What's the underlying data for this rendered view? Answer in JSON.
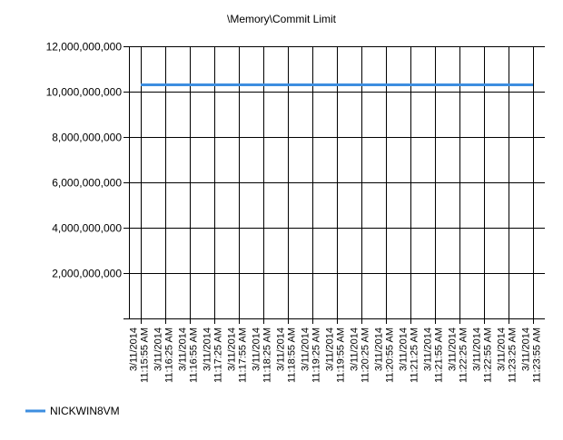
{
  "chart_data": {
    "type": "line",
    "title": "\\Memory\\Commit Limit",
    "xlabel": "",
    "ylabel": "",
    "ylim": [
      0,
      12000000000
    ],
    "yticks": [
      {
        "value": 2000000000,
        "label": "2,000,000,000"
      },
      {
        "value": 4000000000,
        "label": "4,000,000,000"
      },
      {
        "value": 6000000000,
        "label": "6,000,000,000"
      },
      {
        "value": 8000000000,
        "label": "8,000,000,000"
      },
      {
        "value": 10000000000,
        "label": "10,000,000,000"
      },
      {
        "value": 12000000000,
        "label": "12,000,000,000"
      }
    ],
    "grid": true,
    "legend": "bottom-left",
    "categories": [
      {
        "date": "3/11/2014",
        "time": "11:15:55 AM"
      },
      {
        "date": "3/11/2014",
        "time": "11:16:25 AM"
      },
      {
        "date": "3/11/2014",
        "time": "11:16:55 AM"
      },
      {
        "date": "3/11/2014",
        "time": "11:17:25 AM"
      },
      {
        "date": "3/11/2014",
        "time": "11:17:55 AM"
      },
      {
        "date": "3/11/2014",
        "time": "11:18:25 AM"
      },
      {
        "date": "3/11/2014",
        "time": "11:18:55 AM"
      },
      {
        "date": "3/11/2014",
        "time": "11:19:25 AM"
      },
      {
        "date": "3/11/2014",
        "time": "11:19:55 AM"
      },
      {
        "date": "3/11/2014",
        "time": "11:20:25 AM"
      },
      {
        "date": "3/11/2014",
        "time": "11:20:55 AM"
      },
      {
        "date": "3/11/2014",
        "time": "11:21:25 AM"
      },
      {
        "date": "3/11/2014",
        "time": "11:21:55 AM"
      },
      {
        "date": "3/11/2014",
        "time": "11:22:25 AM"
      },
      {
        "date": "3/11/2014",
        "time": "11:22:55 AM"
      },
      {
        "date": "3/11/2014",
        "time": "11:23:25 AM"
      },
      {
        "date": "3/11/2014",
        "time": "11:23:55 AM"
      }
    ],
    "series": [
      {
        "name": "NICKWIN8VM",
        "color": "#3d8ee0",
        "values": [
          10300000000,
          10300000000,
          10300000000,
          10300000000,
          10300000000,
          10300000000,
          10300000000,
          10300000000,
          10300000000,
          10300000000,
          10300000000,
          10300000000,
          10300000000,
          10300000000,
          10300000000,
          10300000000,
          10300000000
        ]
      }
    ]
  }
}
